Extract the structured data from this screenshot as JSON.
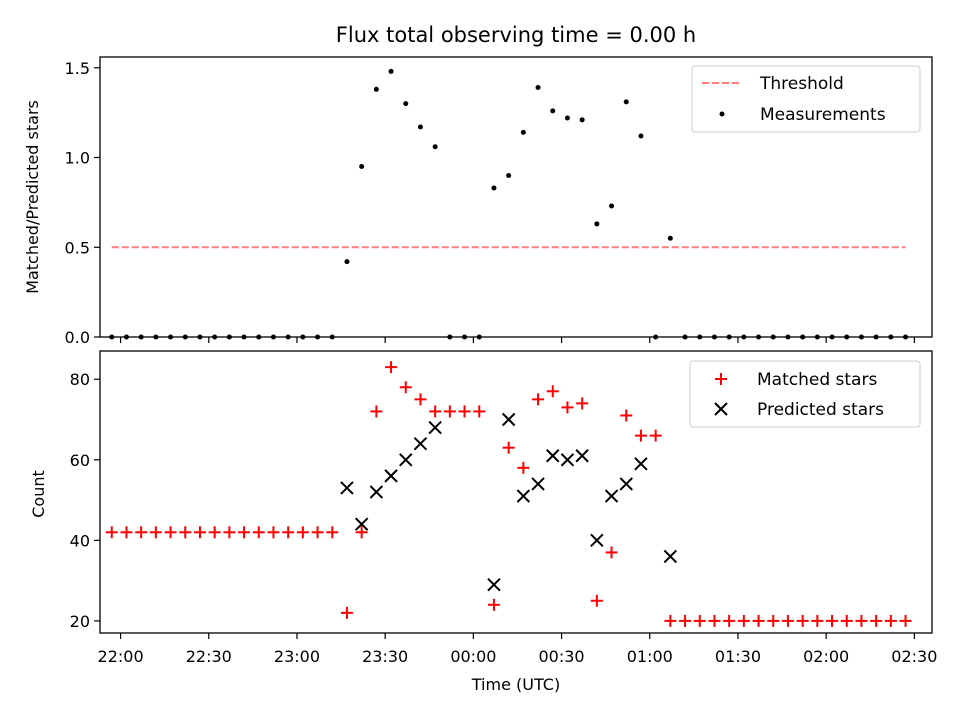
{
  "figure": {
    "title": "Flux total observing time = 0.00 h"
  },
  "chart_data": [
    {
      "type": "scatter",
      "panel": "top",
      "title": "Flux total observing time = 0.00 h",
      "xlabel": "",
      "ylabel": "Matched/Predicted stars",
      "xlim": [
        "21:53",
        "02:36"
      ],
      "ylim": [
        0,
        1.56
      ],
      "yticks": [
        "0.0",
        "0.5",
        "1.0",
        "1.5"
      ],
      "legend": {
        "position": "top-right",
        "entries": [
          "Threshold",
          "Measurements"
        ]
      },
      "threshold": {
        "name": "Threshold",
        "value": 0.5,
        "x_start": "21:57",
        "x_end": "02:27",
        "color": "#ff7f7f",
        "style": "dashed"
      },
      "series": [
        {
          "name": "Measurements",
          "color": "#000000",
          "marker": "dot",
          "points": [
            [
              "21:57",
              0
            ],
            [
              "22:02",
              0
            ],
            [
              "22:07",
              0
            ],
            [
              "22:12",
              0
            ],
            [
              "22:17",
              0
            ],
            [
              "22:22",
              0
            ],
            [
              "22:27",
              0
            ],
            [
              "22:32",
              0
            ],
            [
              "22:37",
              0
            ],
            [
              "22:42",
              0
            ],
            [
              "22:47",
              0
            ],
            [
              "22:52",
              0
            ],
            [
              "22:57",
              0
            ],
            [
              "23:02",
              0
            ],
            [
              "23:07",
              0
            ],
            [
              "23:12",
              0
            ],
            [
              "23:17",
              0.42
            ],
            [
              "23:22",
              0.95
            ],
            [
              "23:27",
              1.38
            ],
            [
              "23:32",
              1.48
            ],
            [
              "23:37",
              1.3
            ],
            [
              "23:42",
              1.17
            ],
            [
              "23:47",
              1.06
            ],
            [
              "23:52",
              0
            ],
            [
              "23:57",
              0
            ],
            [
              "00:02",
              0
            ],
            [
              "00:07",
              0.83
            ],
            [
              "00:12",
              0.9
            ],
            [
              "00:17",
              1.14
            ],
            [
              "00:22",
              1.39
            ],
            [
              "00:27",
              1.26
            ],
            [
              "00:32",
              1.22
            ],
            [
              "00:37",
              1.21
            ],
            [
              "00:42",
              0.63
            ],
            [
              "00:47",
              0.73
            ],
            [
              "00:52",
              1.31
            ],
            [
              "00:57",
              1.12
            ],
            [
              "01:02",
              0
            ],
            [
              "01:07",
              0.55
            ],
            [
              "01:12",
              0
            ],
            [
              "01:17",
              0
            ],
            [
              "01:22",
              0
            ],
            [
              "01:27",
              0
            ],
            [
              "01:32",
              0
            ],
            [
              "01:37",
              0
            ],
            [
              "01:42",
              0
            ],
            [
              "01:47",
              0
            ],
            [
              "01:52",
              0
            ],
            [
              "01:57",
              0
            ],
            [
              "02:02",
              0
            ],
            [
              "02:07",
              0
            ],
            [
              "02:12",
              0
            ],
            [
              "02:17",
              0
            ],
            [
              "02:22",
              0
            ],
            [
              "02:27",
              0
            ]
          ]
        }
      ]
    },
    {
      "type": "scatter",
      "panel": "bottom",
      "title": "",
      "xlabel": "Time (UTC)",
      "ylabel": "Count",
      "xlim": [
        "21:53",
        "02:36"
      ],
      "ylim": [
        17,
        87
      ],
      "yticks": [
        "20",
        "40",
        "60",
        "80"
      ],
      "xticks": [
        "22:00",
        "22:30",
        "23:00",
        "23:30",
        "00:00",
        "00:30",
        "01:00",
        "01:30",
        "02:00",
        "02:30"
      ],
      "legend": {
        "position": "top-right",
        "entries": [
          "Matched stars",
          "Predicted stars"
        ]
      },
      "series": [
        {
          "name": "Matched stars",
          "color": "#ff0000",
          "marker": "plus",
          "points": [
            [
              "21:57",
              42
            ],
            [
              "22:02",
              42
            ],
            [
              "22:07",
              42
            ],
            [
              "22:12",
              42
            ],
            [
              "22:17",
              42
            ],
            [
              "22:22",
              42
            ],
            [
              "22:27",
              42
            ],
            [
              "22:32",
              42
            ],
            [
              "22:37",
              42
            ],
            [
              "22:42",
              42
            ],
            [
              "22:47",
              42
            ],
            [
              "22:52",
              42
            ],
            [
              "22:57",
              42
            ],
            [
              "23:02",
              42
            ],
            [
              "23:07",
              42
            ],
            [
              "23:12",
              42
            ],
            [
              "23:17",
              22
            ],
            [
              "23:22",
              42
            ],
            [
              "23:27",
              72
            ],
            [
              "23:32",
              83
            ],
            [
              "23:37",
              78
            ],
            [
              "23:42",
              75
            ],
            [
              "23:47",
              72
            ],
            [
              "23:52",
              72
            ],
            [
              "23:57",
              72
            ],
            [
              "00:02",
              72
            ],
            [
              "00:07",
              24
            ],
            [
              "00:12",
              63
            ],
            [
              "00:17",
              58
            ],
            [
              "00:22",
              75
            ],
            [
              "00:27",
              77
            ],
            [
              "00:32",
              73
            ],
            [
              "00:37",
              74
            ],
            [
              "00:42",
              25
            ],
            [
              "00:47",
              37
            ],
            [
              "00:52",
              71
            ],
            [
              "00:57",
              66
            ],
            [
              "01:02",
              66
            ],
            [
              "01:07",
              20
            ],
            [
              "01:12",
              20
            ],
            [
              "01:17",
              20
            ],
            [
              "01:22",
              20
            ],
            [
              "01:27",
              20
            ],
            [
              "01:32",
              20
            ],
            [
              "01:37",
              20
            ],
            [
              "01:42",
              20
            ],
            [
              "01:47",
              20
            ],
            [
              "01:52",
              20
            ],
            [
              "01:57",
              20
            ],
            [
              "02:02",
              20
            ],
            [
              "02:07",
              20
            ],
            [
              "02:12",
              20
            ],
            [
              "02:17",
              20
            ],
            [
              "02:22",
              20
            ],
            [
              "02:27",
              20
            ]
          ]
        },
        {
          "name": "Predicted stars",
          "color": "#000000",
          "marker": "x",
          "points": [
            [
              "23:17",
              53
            ],
            [
              "23:22",
              44
            ],
            [
              "23:27",
              52
            ],
            [
              "23:32",
              56
            ],
            [
              "23:37",
              60
            ],
            [
              "23:42",
              64
            ],
            [
              "23:47",
              68
            ],
            [
              "00:07",
              29
            ],
            [
              "00:12",
              70
            ],
            [
              "00:17",
              51
            ],
            [
              "00:22",
              54
            ],
            [
              "00:27",
              61
            ],
            [
              "00:32",
              60
            ],
            [
              "00:37",
              61
            ],
            [
              "00:42",
              40
            ],
            [
              "00:47",
              51
            ],
            [
              "00:52",
              54
            ],
            [
              "00:57",
              59
            ],
            [
              "01:07",
              36
            ]
          ]
        }
      ]
    }
  ]
}
